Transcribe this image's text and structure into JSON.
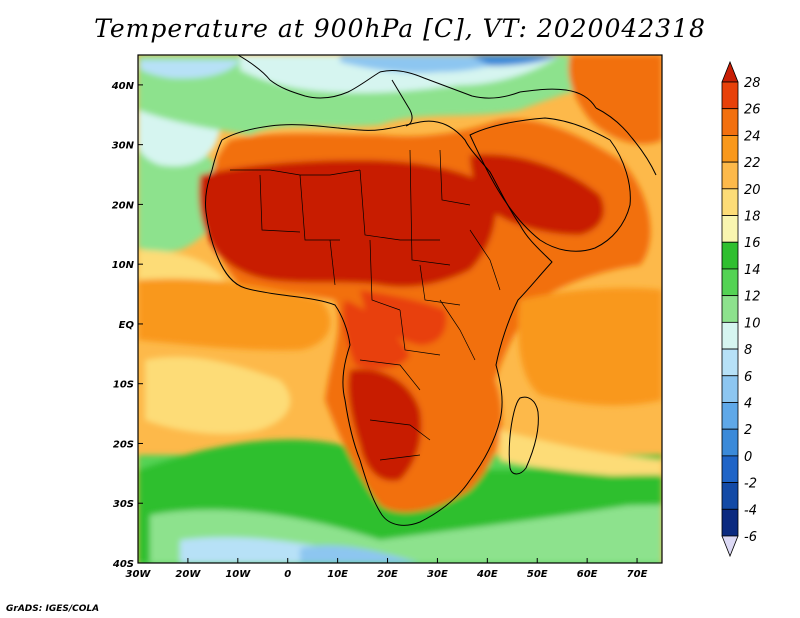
{
  "title": "Temperature at 900hPa [C], VT: 2020042318",
  "credit": "GrADS: IGES/COLA",
  "map": {
    "region": "Africa",
    "variable": "Temperature",
    "level": "900hPa",
    "units": "C",
    "valid_time": "2020042318",
    "lon_range": [
      -30,
      75
    ],
    "lat_range": [
      -40,
      45
    ],
    "lon_tick_values": [
      -30,
      -20,
      -10,
      0,
      10,
      20,
      30,
      40,
      50,
      60,
      70
    ],
    "lat_tick_values": [
      40,
      30,
      20,
      10,
      0,
      -10,
      -20,
      -30,
      -40
    ],
    "lon_tick_labels": [
      "30W",
      "20W",
      "10W",
      "0",
      "10E",
      "20E",
      "30E",
      "40E",
      "50E",
      "60E",
      "70E"
    ],
    "lat_tick_labels": [
      "40N",
      "30N",
      "20N",
      "10N",
      "EQ",
      "10S",
      "20S",
      "30S",
      "40S"
    ]
  },
  "colorbar": {
    "levels": [
      "28",
      "26",
      "24",
      "22",
      "20",
      "18",
      "16",
      "14",
      "12",
      "10",
      "8",
      "6",
      "4",
      "2",
      "0",
      "-2",
      "-4",
      "-6"
    ],
    "colors": [
      "#c81e05",
      "#e8410a",
      "#f2700f",
      "#f9981b",
      "#fdb94a",
      "#fddc77",
      "#f9f5b0",
      "#2fbf2f",
      "#54d354",
      "#8de28d",
      "#d6f5f0",
      "#b7e1f7",
      "#8dc6f0",
      "#5fa8e8",
      "#3b8ad9",
      "#1f64c7",
      "#134aa6",
      "#0b2a80",
      "#dcd9f5"
    ]
  }
}
